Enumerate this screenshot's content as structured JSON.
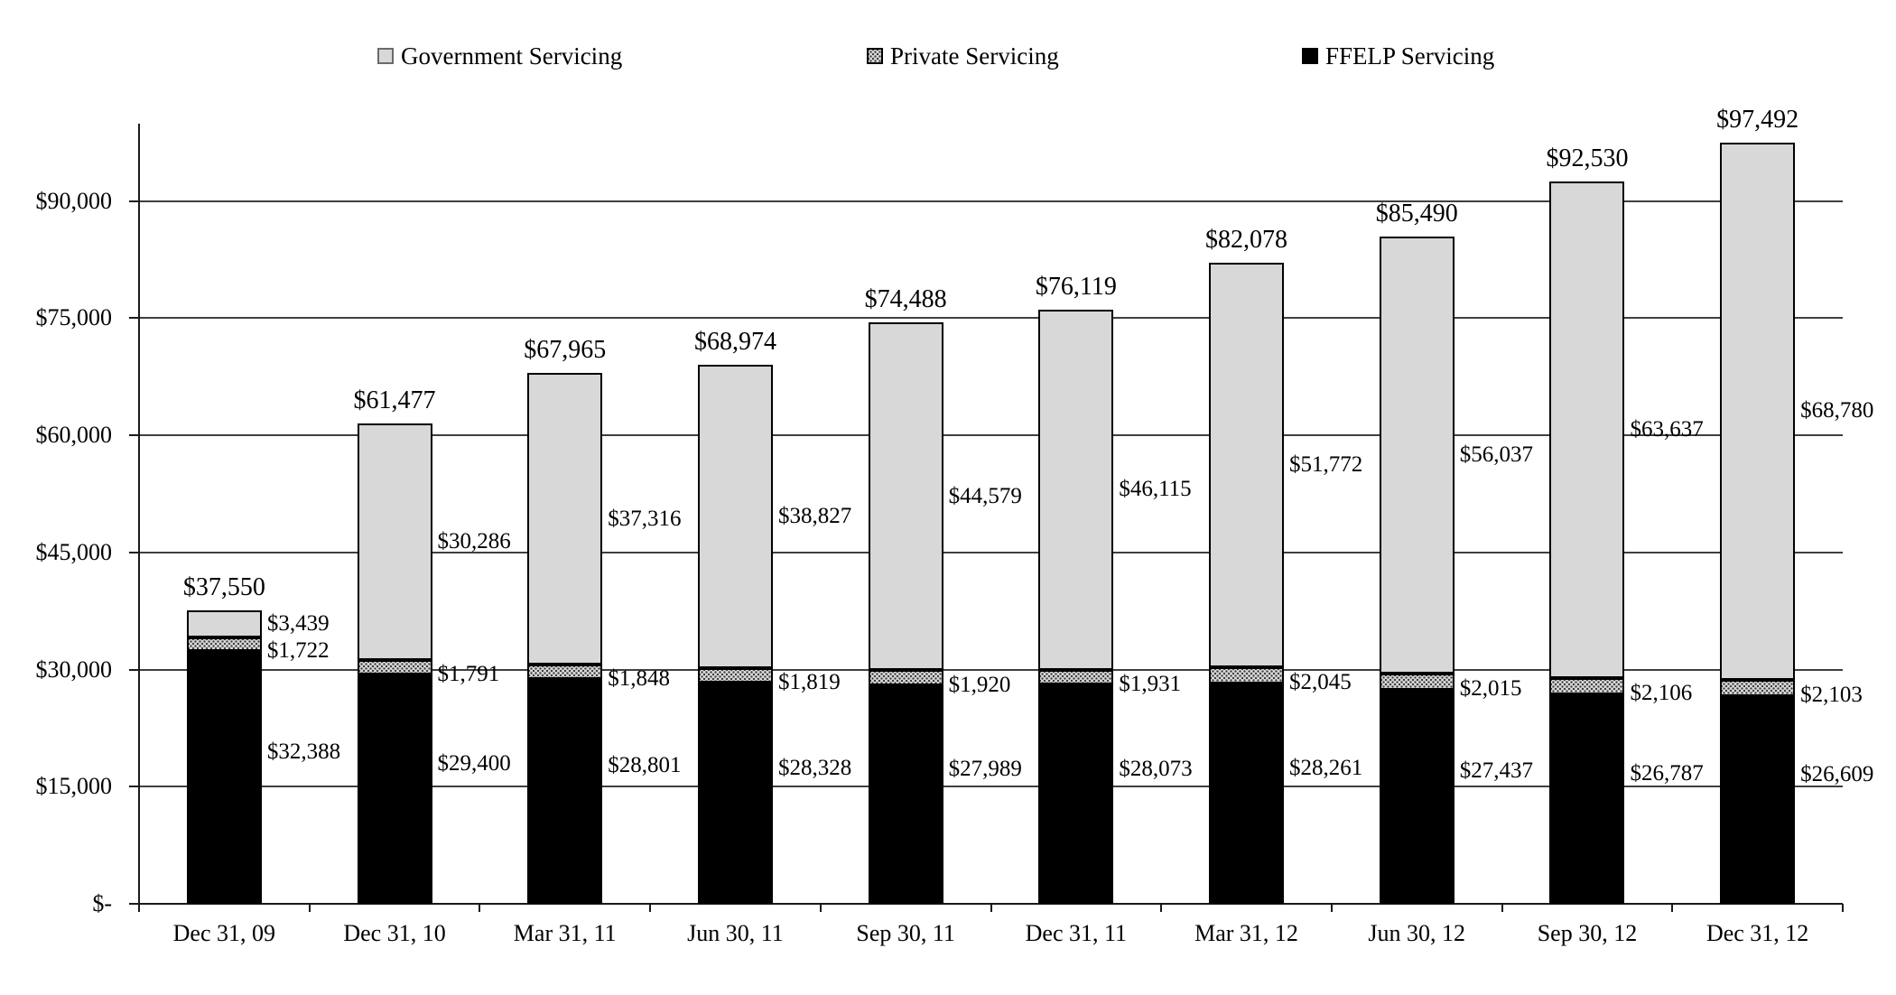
{
  "chart": {
    "legend": [
      {
        "label": "Government Servicing",
        "swatch": "government"
      },
      {
        "label": "Private Servicing",
        "swatch": "private"
      },
      {
        "label": "FFELP Servicing",
        "swatch": "ffelp"
      }
    ],
    "colors": {
      "government_fill": "#d8d8d8",
      "private_fill": "#d9d9d9",
      "private_dot": "#3d3d3d",
      "ffelp_fill": "#000000",
      "gridline": "#3f3f3f",
      "axis": "#1a1a1a",
      "text": "#000000"
    }
  },
  "chart_data": {
    "type": "bar",
    "stacked": true,
    "title": "",
    "xlabel": "",
    "ylabel": "",
    "grid": true,
    "legend_position": "top",
    "ylim": [
      0,
      100000
    ],
    "y_ticks": [
      {
        "value": 0,
        "label": "$-"
      },
      {
        "value": 15000,
        "label": "$15,000"
      },
      {
        "value": 30000,
        "label": "$30,000"
      },
      {
        "value": 45000,
        "label": "$45,000"
      },
      {
        "value": 60000,
        "label": "$60,000"
      },
      {
        "value": 75000,
        "label": "$75,000"
      },
      {
        "value": 90000,
        "label": "$90,000"
      }
    ],
    "categories": [
      "Dec 31, 09",
      "Dec 31, 10",
      "Mar 31, 11",
      "Jun 30, 11",
      "Sep 30, 11",
      "Dec 31, 11",
      "Mar 31, 12",
      "Jun 30, 12",
      "Sep 30, 12",
      "Dec 31, 12"
    ],
    "series": [
      {
        "name": "FFELP Servicing",
        "key": "ffelp",
        "values": [
          32388,
          29400,
          28801,
          28328,
          27989,
          28073,
          28261,
          27437,
          26787,
          26609
        ]
      },
      {
        "name": "Private Servicing",
        "key": "private",
        "values": [
          1722,
          1791,
          1848,
          1819,
          1920,
          1931,
          2045,
          2015,
          2106,
          2103
        ]
      },
      {
        "name": "Government Servicing",
        "key": "government",
        "values": [
          3439,
          30286,
          37316,
          38827,
          44579,
          46115,
          51772,
          56037,
          63637,
          68780
        ]
      }
    ],
    "totals": [
      37550,
      61477,
      67965,
      68974,
      74488,
      76119,
      82078,
      85490,
      92530,
      97492
    ]
  }
}
